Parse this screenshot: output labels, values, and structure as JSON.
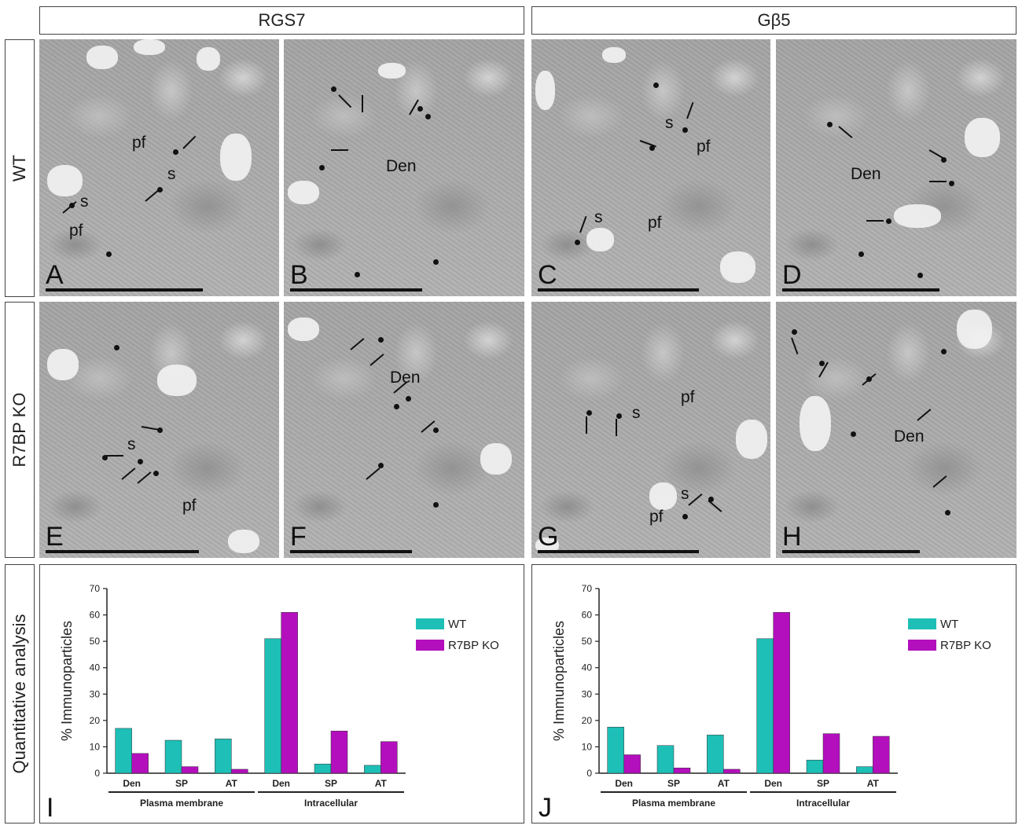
{
  "headers": {
    "left": "RGS7",
    "right": "Gβ5"
  },
  "row_labels": {
    "wt": "WT",
    "ko": "R7BP KO",
    "quant": "Quantitative analysis"
  },
  "panels": [
    {
      "letter": "A",
      "labels": [
        "pf",
        "s",
        "s",
        "pf"
      ]
    },
    {
      "letter": "B",
      "labels": [
        "Den"
      ]
    },
    {
      "letter": "C",
      "labels": [
        "s",
        "pf",
        "s",
        "pf"
      ]
    },
    {
      "letter": "D",
      "labels": [
        "Den"
      ]
    },
    {
      "letter": "E",
      "labels": [
        "s",
        "pf"
      ]
    },
    {
      "letter": "F",
      "labels": [
        "Den"
      ]
    },
    {
      "letter": "G",
      "labels": [
        "s",
        "pf",
        "s",
        "pf"
      ]
    },
    {
      "letter": "H",
      "labels": [
        "Den"
      ]
    }
  ],
  "chart_data": [
    {
      "type": "bar",
      "panel_letter": "I",
      "ylabel": "% Immunoparticles",
      "ylim": [
        0,
        70
      ],
      "yticks": [
        0,
        10,
        20,
        30,
        40,
        50,
        60,
        70
      ],
      "categories": [
        "Den",
        "SP",
        "AT",
        "Den",
        "SP",
        "AT"
      ],
      "groups": [
        {
          "label": "Plasma membrane",
          "span": [
            0,
            2
          ]
        },
        {
          "label": "Intracellular",
          "span": [
            3,
            5
          ]
        }
      ],
      "series": [
        {
          "name": "WT",
          "color": "#1dbfb6",
          "values": [
            17,
            12.5,
            13,
            51,
            3.5,
            3
          ]
        },
        {
          "name": "R7BP KO",
          "color": "#b30fbd",
          "values": [
            7.5,
            2.5,
            1.5,
            61,
            16,
            12
          ]
        }
      ],
      "legend": "top-right"
    },
    {
      "type": "bar",
      "panel_letter": "J",
      "ylabel": "% Immunoparticles",
      "ylim": [
        0,
        70
      ],
      "yticks": [
        0,
        10,
        20,
        30,
        40,
        50,
        60,
        70
      ],
      "categories": [
        "Den",
        "SP",
        "AT",
        "Den",
        "SP",
        "AT"
      ],
      "groups": [
        {
          "label": "Plasma membrane",
          "span": [
            0,
            2
          ]
        },
        {
          "label": "Intracellular",
          "span": [
            3,
            5
          ]
        }
      ],
      "series": [
        {
          "name": "WT",
          "color": "#1dbfb6",
          "values": [
            17.5,
            10.5,
            14.5,
            51,
            5,
            2.5
          ]
        },
        {
          "name": "R7BP KO",
          "color": "#b30fbd",
          "values": [
            7,
            2,
            1.5,
            61,
            15,
            14
          ]
        }
      ],
      "legend": "top-right"
    }
  ]
}
